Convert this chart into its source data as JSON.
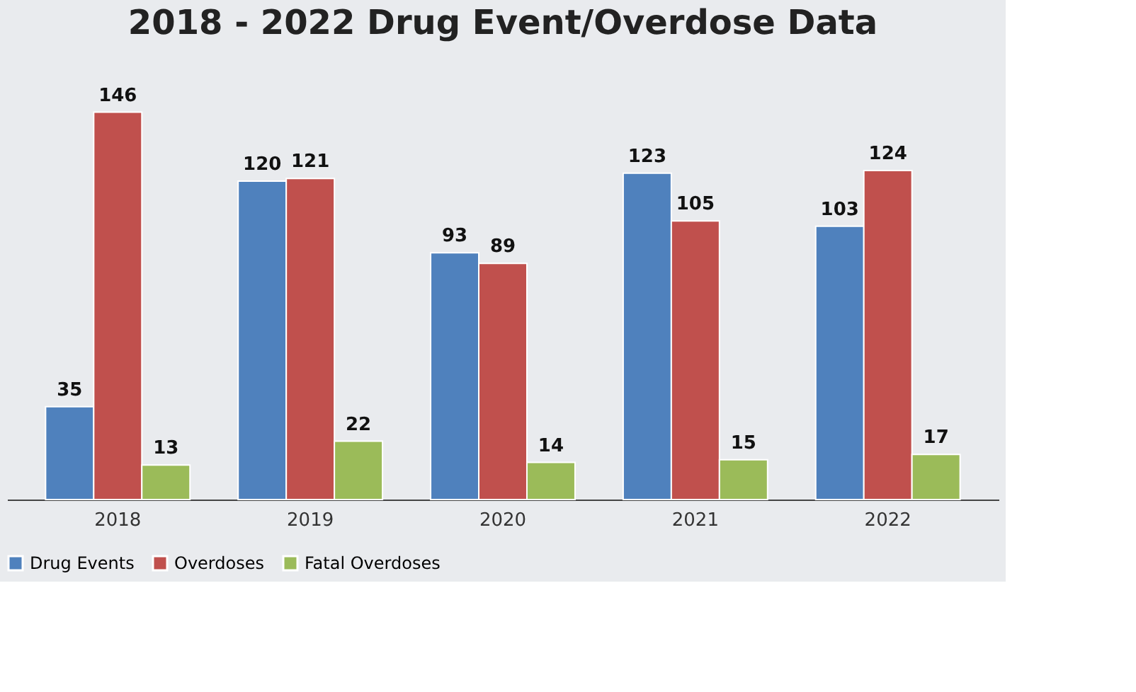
{
  "chart_data": {
    "type": "bar",
    "title": "2018 - 2022 Drug Event/Overdose Data",
    "categories": [
      "2018",
      "2019",
      "2020",
      "2021",
      "2022"
    ],
    "series": [
      {
        "name": "Drug Events",
        "color": "#4f81bd",
        "values": [
          35,
          120,
          93,
          123,
          103
        ]
      },
      {
        "name": "Overdoses",
        "color": "#c0504d",
        "values": [
          146,
          121,
          89,
          105,
          124
        ]
      },
      {
        "name": "Fatal Overdoses",
        "color": "#9bbb59",
        "values": [
          13,
          22,
          14,
          15,
          17
        ]
      }
    ],
    "data_labels": true,
    "legend": "bottom",
    "grid": false,
    "tick_labels": "x"
  }
}
